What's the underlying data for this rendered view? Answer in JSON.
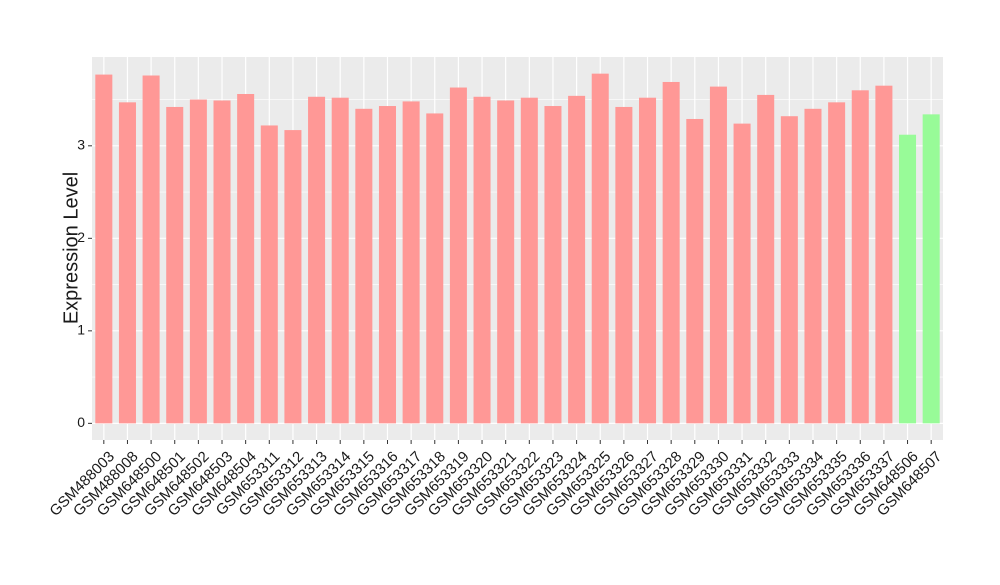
{
  "chart_data": {
    "type": "bar",
    "y_label": "Expression Level",
    "categories": [
      "GSM488003",
      "GSM488008",
      "GSM648500",
      "GSM648501",
      "GSM648502",
      "GSM648503",
      "GSM648504",
      "GSM653311",
      "GSM653312",
      "GSM653313",
      "GSM653314",
      "GSM653315",
      "GSM653316",
      "GSM653317",
      "GSM653318",
      "GSM653319",
      "GSM653320",
      "GSM653321",
      "GSM653322",
      "GSM653323",
      "GSM653324",
      "GSM653325",
      "GSM653326",
      "GSM653327",
      "GSM653328",
      "GSM653329",
      "GSM653330",
      "GSM653331",
      "GSM653332",
      "GSM653333",
      "GSM653334",
      "GSM653335",
      "GSM653336",
      "GSM653337",
      "GSM648506",
      "GSM648507"
    ],
    "values": [
      3.77,
      3.47,
      3.76,
      3.42,
      3.5,
      3.49,
      3.56,
      3.22,
      3.17,
      3.53,
      3.52,
      3.4,
      3.43,
      3.48,
      3.35,
      3.63,
      3.53,
      3.49,
      3.52,
      3.43,
      3.54,
      3.78,
      3.42,
      3.52,
      3.69,
      3.29,
      3.64,
      3.24,
      3.55,
      3.32,
      3.4,
      3.47,
      3.6,
      3.65,
      3.12,
      3.34
    ],
    "colors": [
      "#ff9896",
      "#ff9896",
      "#ff9896",
      "#ff9896",
      "#ff9896",
      "#ff9896",
      "#ff9896",
      "#ff9896",
      "#ff9896",
      "#ff9896",
      "#ff9896",
      "#ff9896",
      "#ff9896",
      "#ff9896",
      "#ff9896",
      "#ff9896",
      "#ff9896",
      "#ff9896",
      "#ff9896",
      "#ff9896",
      "#ff9896",
      "#ff9896",
      "#ff9896",
      "#ff9896",
      "#ff9896",
      "#ff9896",
      "#ff9896",
      "#ff9896",
      "#ff9896",
      "#ff9896",
      "#ff9896",
      "#ff9896",
      "#ff9896",
      "#ff9896",
      "#98fb98",
      "#98fb98"
    ],
    "ylim": [
      -0.18,
      3.96
    ],
    "yticks": [
      0,
      1,
      2,
      3
    ],
    "minor_yticks": [
      0.5,
      1.5,
      2.5,
      3.5
    ],
    "grid": true
  }
}
